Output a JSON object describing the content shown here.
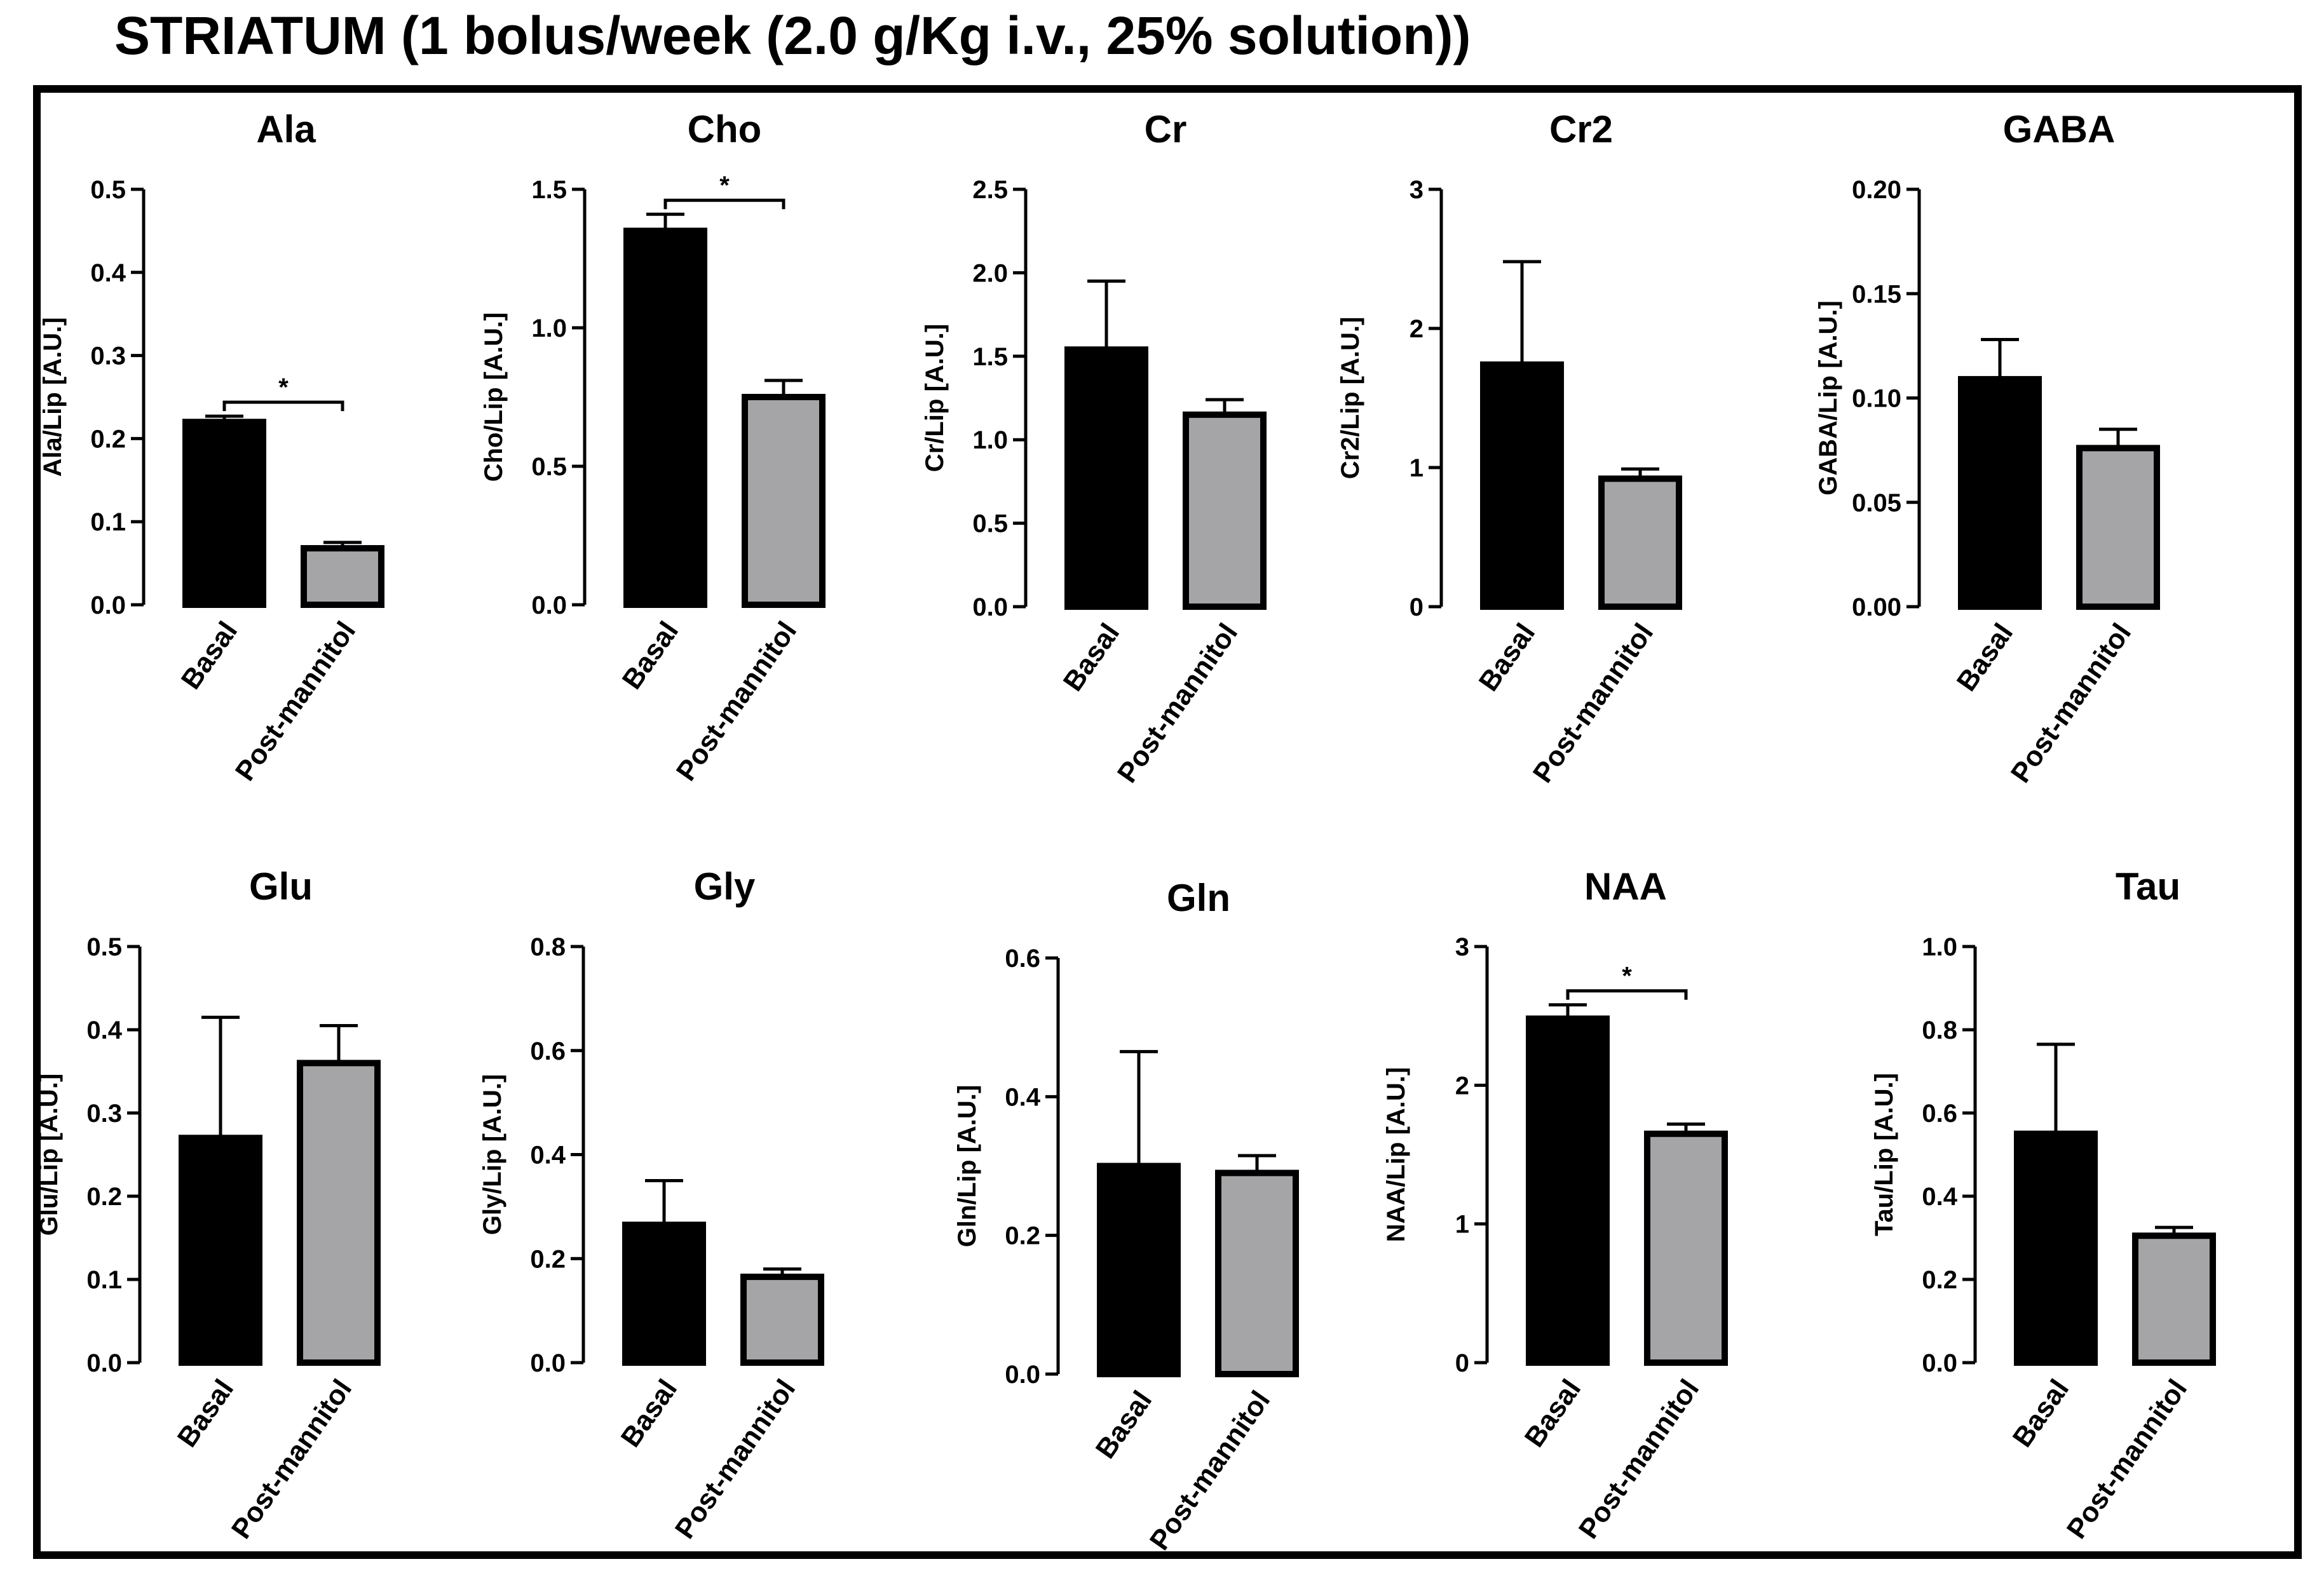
{
  "figure": {
    "title": "STRIATUM (1 bolus/week (2.0 g/Kg i.v., 25% solution))",
    "colors": {
      "basal": "#000000",
      "post": "#a5a5a8",
      "axis": "#000000"
    }
  },
  "chart_data": [
    {
      "type": "bar",
      "title": "Ala",
      "ylabel": "Ala/Lip [A.U.]",
      "categories": [
        "Basal",
        "Post-mannitol"
      ],
      "values": [
        0.22,
        0.068
      ],
      "errors": [
        0.007,
        0.007
      ],
      "ylim": [
        0,
        0.5
      ],
      "yticks": [
        "0.0",
        "0.1",
        "0.2",
        "0.3",
        "0.4",
        "0.5"
      ],
      "significance": "*"
    },
    {
      "type": "bar",
      "title": "Cho",
      "ylabel": "Cho/Lip [A.U.]",
      "categories": [
        "Basal",
        "Post-mannitol"
      ],
      "values": [
        1.35,
        0.75
      ],
      "errors": [
        0.06,
        0.06
      ],
      "ylim": [
        0,
        1.5
      ],
      "yticks": [
        "0.0",
        "0.5",
        "1.0",
        "1.5"
      ],
      "significance": "*"
    },
    {
      "type": "bar",
      "title": "Cr",
      "ylabel": "Cr/Lip [A.U.]",
      "categories": [
        "Basal",
        "Post-mannitol"
      ],
      "values": [
        1.54,
        1.15
      ],
      "errors": [
        0.41,
        0.09
      ],
      "ylim": [
        0,
        2.5
      ],
      "yticks": [
        "0.0",
        "0.5",
        "1.0",
        "1.5",
        "2.0",
        "2.5"
      ],
      "significance": ""
    },
    {
      "type": "bar",
      "title": "Cr2",
      "ylabel": "Cr2/Lip [A.U.]",
      "categories": [
        "Basal",
        "Post-mannitol"
      ],
      "values": [
        1.74,
        0.92
      ],
      "errors": [
        0.74,
        0.07
      ],
      "ylim": [
        0,
        3
      ],
      "yticks": [
        "0",
        "1",
        "2",
        "3"
      ],
      "significance": ""
    },
    {
      "type": "bar",
      "title": "GABA",
      "ylabel": "GABA/Lip [A.U.]",
      "categories": [
        "Basal",
        "Post-mannitol"
      ],
      "values": [
        0.109,
        0.076
      ],
      "errors": [
        0.019,
        0.009
      ],
      "ylim": [
        0,
        0.2
      ],
      "yticks": [
        "0.00",
        "0.05",
        "0.10",
        "0.15",
        "0.20"
      ],
      "significance": ""
    },
    {
      "type": "bar",
      "title": "Glu",
      "ylabel": "Glu/Lip [A.U.]",
      "categories": [
        "Basal",
        "Post-mannitol"
      ],
      "values": [
        0.27,
        0.36
      ],
      "errors": [
        0.145,
        0.045
      ],
      "ylim": [
        0,
        0.5
      ],
      "yticks": [
        "0.0",
        "0.1",
        "0.2",
        "0.3",
        "0.4",
        "0.5"
      ],
      "significance": ""
    },
    {
      "type": "bar",
      "title": "Gly",
      "ylabel": "Gly/Lip [A.U.]",
      "categories": [
        "Basal",
        "Post-mannitol"
      ],
      "values": [
        0.265,
        0.165
      ],
      "errors": [
        0.085,
        0.015
      ],
      "ylim": [
        0,
        0.8
      ],
      "yticks": [
        "0.0",
        "0.2",
        "0.4",
        "0.6",
        "0.8"
      ],
      "significance": ""
    },
    {
      "type": "bar",
      "title": "Gln",
      "ylabel": "Gln/Lip [A.U.]",
      "categories": [
        "Basal",
        "Post-mannitol"
      ],
      "values": [
        0.3,
        0.29
      ],
      "errors": [
        0.165,
        0.025
      ],
      "ylim": [
        0,
        0.6
      ],
      "yticks": [
        "0.0",
        "0.2",
        "0.4",
        "0.6"
      ],
      "significance": ""
    },
    {
      "type": "bar",
      "title": "NAA",
      "ylabel": "NAA/Lip [A.U.]",
      "categories": [
        "Basal",
        "Post-mannitol"
      ],
      "values": [
        2.48,
        1.65
      ],
      "errors": [
        0.1,
        0.07
      ],
      "ylim": [
        0,
        3
      ],
      "yticks": [
        "0",
        "1",
        "2",
        "3"
      ],
      "significance": "*"
    },
    {
      "type": "bar",
      "title": "Tau",
      "ylabel": "Tau/Lip [A.U.]",
      "categories": [
        "Basal",
        "Post-mannitol"
      ],
      "values": [
        0.55,
        0.305
      ],
      "errors": [
        0.215,
        0.02
      ],
      "ylim": [
        0,
        1.0
      ],
      "yticks": [
        "0.0",
        "0.2",
        "0.4",
        "0.6",
        "0.8",
        "1.0"
      ],
      "significance": ""
    }
  ]
}
